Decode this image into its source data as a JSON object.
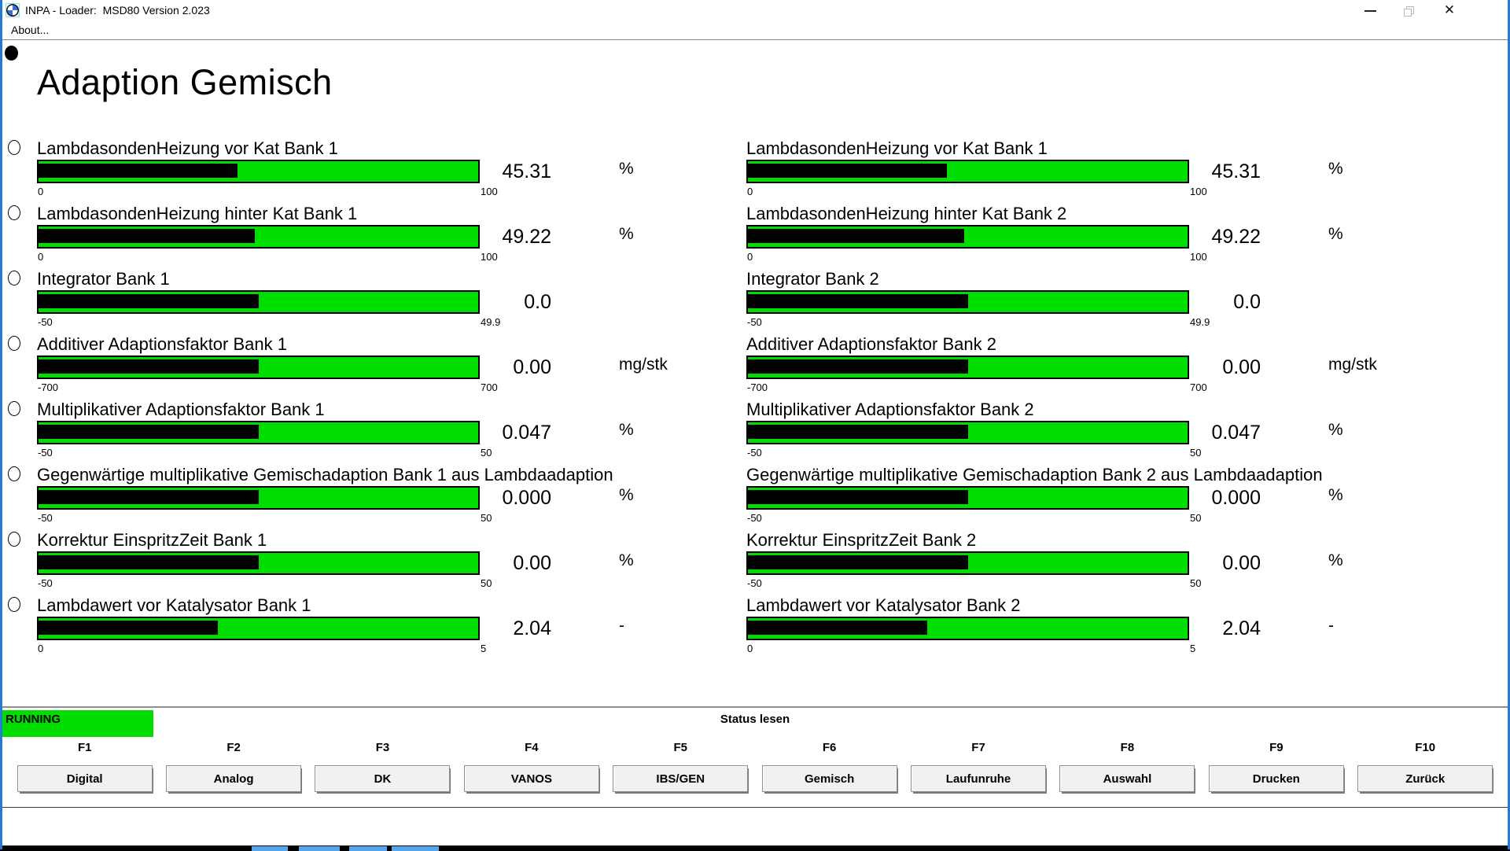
{
  "window": {
    "title": "INPA - Loader:  MSD80 Version 2.023",
    "menu_items": [
      {
        "label": "About..."
      }
    ],
    "controls": {
      "minimize": "minimize-icon",
      "restore": "restore-icon",
      "close": "✕"
    }
  },
  "page": {
    "heading": "Adaption Gemisch"
  },
  "colors": {
    "gauge_green": "#00dd00",
    "status_green": "#00dd00",
    "window_border_blue": "#2779d8",
    "taskbar_blue": "#55a6ea"
  },
  "gauges": {
    "left": [
      {
        "label": "LambdasondenHeizung vor Kat Bank 1",
        "value": "45.31",
        "unit": "%",
        "min": "0",
        "max": "100",
        "fill_pct": 45.3
      },
      {
        "label": "LambdasondenHeizung hinter Kat Bank 1",
        "value": "49.22",
        "unit": "%",
        "min": "0",
        "max": "100",
        "fill_pct": 49.2
      },
      {
        "label": "Integrator Bank 1",
        "value": "0.0",
        "unit": "",
        "min": "-50",
        "max": "49.9",
        "fill_pct": 50.1
      },
      {
        "label": "Additiver Adaptionsfaktor Bank 1",
        "value": "0.00",
        "unit": "mg/stk",
        "min": "-700",
        "max": "700",
        "fill_pct": 50.0
      },
      {
        "label": "Multiplikativer Adaptionsfaktor Bank 1",
        "value": "0.047",
        "unit": "%",
        "min": "-50",
        "max": "50",
        "fill_pct": 50.1
      },
      {
        "label": "Gegenwärtige multiplikative Gemischadaption Bank 1 aus Lambdaadaption",
        "value": "0.000",
        "unit": "%",
        "min": "-50",
        "max": "50",
        "fill_pct": 50.0
      },
      {
        "label": "Korrektur EinspritzZeit Bank 1",
        "value": "0.00",
        "unit": "%",
        "min": "-50",
        "max": "50",
        "fill_pct": 50.0
      },
      {
        "label": "Lambdawert vor Katalysator Bank 1",
        "value": "2.04",
        "unit": "-",
        "min": "0",
        "max": "5",
        "fill_pct": 40.8
      }
    ],
    "right": [
      {
        "label": "LambdasondenHeizung vor Kat Bank 1",
        "value": "45.31",
        "unit": "%",
        "min": "0",
        "max": "100",
        "fill_pct": 45.3
      },
      {
        "label": "LambdasondenHeizung hinter Kat Bank 2",
        "value": "49.22",
        "unit": "%",
        "min": "0",
        "max": "100",
        "fill_pct": 49.2
      },
      {
        "label": "Integrator Bank 2",
        "value": "0.0",
        "unit": "",
        "min": "-50",
        "max": "49.9",
        "fill_pct": 50.1
      },
      {
        "label": "Additiver Adaptionsfaktor Bank 2",
        "value": "0.00",
        "unit": "mg/stk",
        "min": "-700",
        "max": "700",
        "fill_pct": 50.0
      },
      {
        "label": "Multiplikativer Adaptionsfaktor Bank 2",
        "value": "0.047",
        "unit": "%",
        "min": "-50",
        "max": "50",
        "fill_pct": 50.1
      },
      {
        "label": "Gegenwärtige multiplikative Gemischadaption Bank 2 aus Lambdaadaption",
        "value": "0.000",
        "unit": "%",
        "min": "-50",
        "max": "50",
        "fill_pct": 50.0
      },
      {
        "label": "Korrektur EinspritzZeit Bank 2",
        "value": "0.00",
        "unit": "%",
        "min": "-50",
        "max": "50",
        "fill_pct": 50.0
      },
      {
        "label": "Lambdawert vor Katalysator Bank 2",
        "value": "2.04",
        "unit": "-",
        "min": "0",
        "max": "5",
        "fill_pct": 40.8
      }
    ]
  },
  "footer": {
    "status_label": "RUNNING",
    "status_message": "Status lesen",
    "function_keys": [
      {
        "key": "F1",
        "label": "Digital"
      },
      {
        "key": "F2",
        "label": "Analog"
      },
      {
        "key": "F3",
        "label": "DK"
      },
      {
        "key": "F4",
        "label": "VANOS"
      },
      {
        "key": "F5",
        "label": "IBS/GEN"
      },
      {
        "key": "F6",
        "label": "Gemisch"
      },
      {
        "key": "F7",
        "label": "Laufunruhe"
      },
      {
        "key": "F8",
        "label": "Auswahl"
      },
      {
        "key": "F9",
        "label": "Drucken"
      },
      {
        "key": "F10",
        "label": "Zurück"
      }
    ]
  }
}
